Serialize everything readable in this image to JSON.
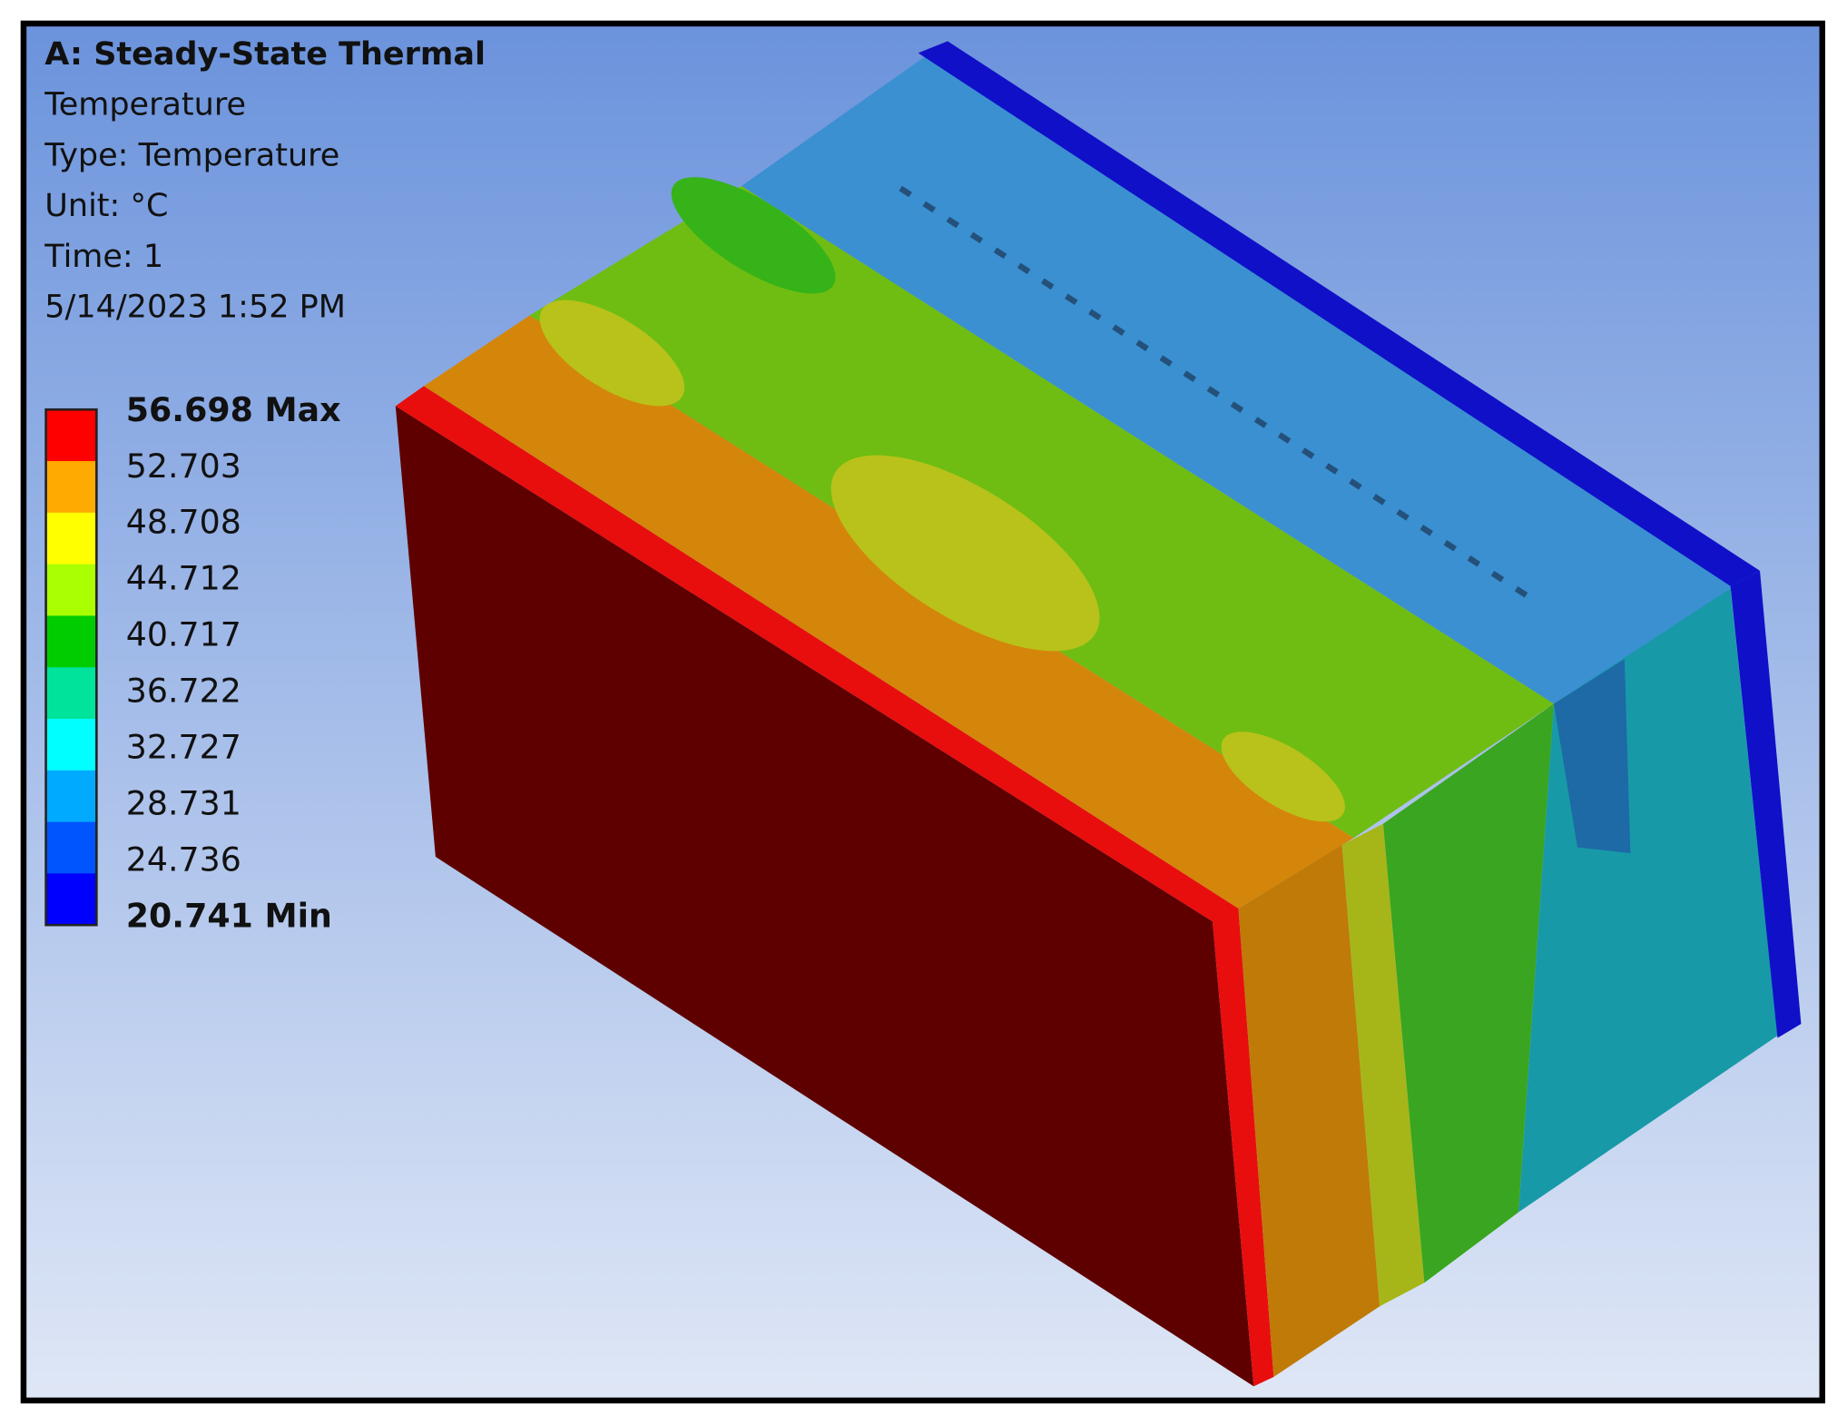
{
  "header": {
    "title": "A: Steady-State Thermal",
    "lines": [
      "Temperature",
      "Type: Temperature",
      "Unit: °C",
      "Time: 1",
      "5/14/2023 1:52 PM"
    ]
  },
  "legend": {
    "labels": [
      "56.698 Max",
      "52.703",
      "48.708",
      "44.712",
      "40.717",
      "36.722",
      "32.727",
      "28.731",
      "24.736",
      "20.741 Min"
    ],
    "colors": [
      "#ff0000",
      "#ffaa00",
      "#ffff00",
      "#aaff00",
      "#00cc00",
      "#00e39a",
      "#00ffff",
      "#00aaff",
      "#0055ff",
      "#0000ff"
    ]
  }
}
